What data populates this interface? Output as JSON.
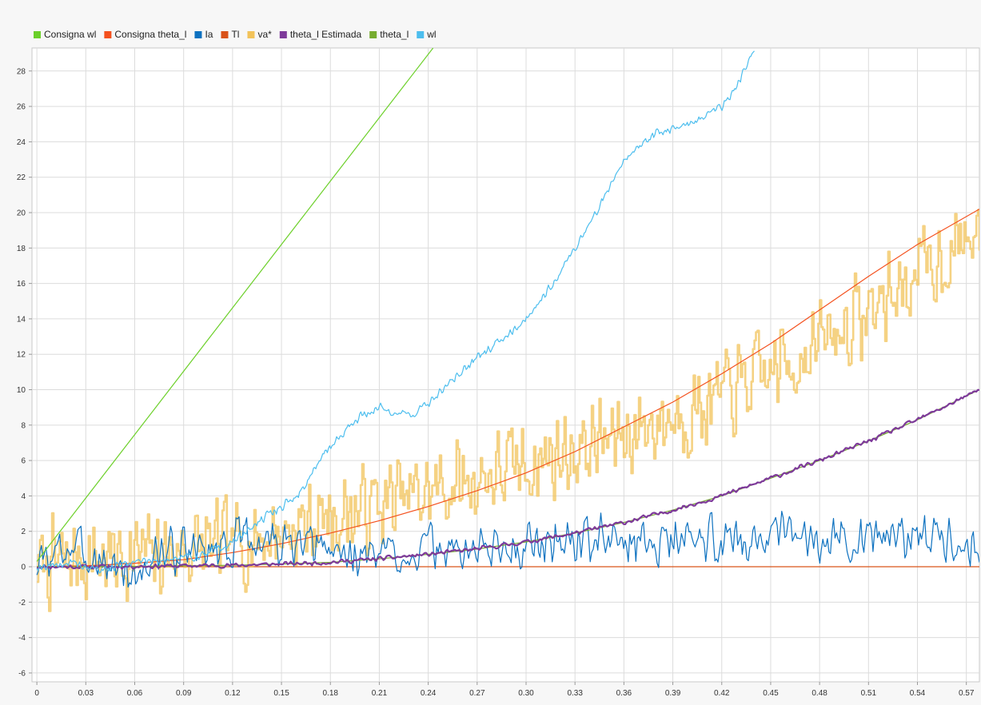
{
  "chart_data": {
    "type": "line",
    "xlabel": "",
    "ylabel": "",
    "xlim": [
      -0.003,
      0.578
    ],
    "ylim": [
      -6.5,
      29.3
    ],
    "grid": true,
    "legend_position": "top-left",
    "x_ticks": [
      "0",
      "0.03",
      "0.06",
      "0.09",
      "0.12",
      "0.15",
      "0.18",
      "0.21",
      "0.24",
      "0.27",
      "0.30",
      "0.33",
      "0.36",
      "0.39",
      "0.42",
      "0.45",
      "0.48",
      "0.51",
      "0.54",
      "0.57"
    ],
    "y_ticks": [
      "28",
      "26",
      "24",
      "22",
      "20",
      "18",
      "16",
      "14",
      "12",
      "10",
      "8",
      "6",
      "4",
      "2",
      "0",
      "-2",
      "-4",
      "-6"
    ],
    "series": [
      {
        "name": "Consigna wl",
        "color": "#6cd02a",
        "x": [
          0,
          0.243
        ],
        "y": [
          0.3,
          29.3
        ]
      },
      {
        "name": "Consigna theta_l",
        "color": "#f4511e",
        "x": [
          0,
          0.03,
          0.06,
          0.09,
          0.12,
          0.15,
          0.18,
          0.21,
          0.24,
          0.27,
          0.3,
          0.33,
          0.36,
          0.39,
          0.42,
          0.45,
          0.48,
          0.51,
          0.54,
          0.578
        ],
        "y": [
          0,
          0.05,
          0.2,
          0.4,
          0.8,
          1.3,
          1.9,
          2.6,
          3.4,
          4.3,
          5.3,
          6.5,
          7.9,
          9.3,
          10.9,
          12.6,
          14.5,
          16.4,
          18.2,
          20.2
        ]
      },
      {
        "name": "Ia",
        "color": "#0e72c0",
        "x": [
          0,
          0.02,
          0.04,
          0.06,
          0.08,
          0.1,
          0.12,
          0.14,
          0.16,
          0.18,
          0.2,
          0.22,
          0.24,
          0.26,
          0.28,
          0.3,
          0.32,
          0.34,
          0.36,
          0.38,
          0.4,
          0.42,
          0.44,
          0.46,
          0.48,
          0.5,
          0.52,
          0.54,
          0.56,
          0.578
        ],
        "y": [
          0,
          1.2,
          0.3,
          -0.5,
          1.0,
          0.8,
          1.4,
          1.5,
          1.0,
          0.9,
          0.6,
          0.8,
          1.0,
          0.9,
          1.1,
          1.3,
          1.5,
          1.6,
          1.4,
          1.5,
          1.5,
          1.6,
          1.7,
          1.6,
          1.7,
          1.6,
          1.7,
          1.8,
          1.8,
          1.2
        ],
        "noise": 1.6,
        "seed": 3
      },
      {
        "name": "Tl",
        "color": "#d95319",
        "x": [
          0,
          0.578
        ],
        "y": [
          0,
          0
        ]
      },
      {
        "name": "va*",
        "color": "#f2c35a",
        "x": [
          0,
          0.03,
          0.06,
          0.09,
          0.12,
          0.15,
          0.18,
          0.21,
          0.24,
          0.27,
          0.3,
          0.33,
          0.36,
          0.39,
          0.42,
          0.45,
          0.48,
          0.51,
          0.54,
          0.578
        ],
        "y": [
          0,
          0.5,
          0.6,
          0.9,
          1.3,
          2.0,
          2.8,
          3.5,
          4.2,
          5.0,
          5.8,
          6.6,
          7.5,
          8.5,
          9.6,
          11.0,
          12.6,
          14.4,
          16.5,
          19.0
        ],
        "noise": 3.0,
        "seed": 7
      },
      {
        "name": "theta_l Estimada",
        "color": "#7e3a9a",
        "x": [
          0,
          0.03,
          0.06,
          0.09,
          0.12,
          0.15,
          0.18,
          0.21,
          0.24,
          0.27,
          0.3,
          0.33,
          0.36,
          0.39,
          0.42,
          0.45,
          0.48,
          0.51,
          0.54,
          0.578
        ],
        "y": [
          0,
          0,
          0.02,
          0.05,
          0.08,
          0.15,
          0.25,
          0.45,
          0.7,
          1.0,
          1.4,
          1.9,
          2.5,
          3.2,
          4.0,
          5.0,
          6.0,
          7.1,
          8.3,
          10.0
        ],
        "noise": 0.15,
        "seed": 11
      },
      {
        "name": "theta_l",
        "color": "#77ac30",
        "x": [
          0,
          0.03,
          0.06,
          0.09,
          0.12,
          0.15,
          0.18,
          0.21,
          0.24,
          0.27,
          0.3,
          0.33,
          0.36,
          0.39,
          0.42,
          0.45,
          0.48,
          0.51,
          0.54,
          0.578
        ],
        "y": [
          0,
          0,
          0.02,
          0.05,
          0.08,
          0.15,
          0.25,
          0.45,
          0.7,
          1.0,
          1.4,
          1.9,
          2.5,
          3.2,
          4.0,
          5.0,
          6.0,
          7.1,
          8.3,
          10.0
        ]
      },
      {
        "name": "wl",
        "color": "#4dbeee",
        "x": [
          0,
          0.02,
          0.04,
          0.06,
          0.08,
          0.1,
          0.12,
          0.14,
          0.16,
          0.17,
          0.18,
          0.19,
          0.2,
          0.21,
          0.22,
          0.23,
          0.24,
          0.26,
          0.28,
          0.3,
          0.32,
          0.34,
          0.36,
          0.38,
          0.4,
          0.42,
          0.43,
          0.44
        ],
        "y": [
          0,
          0.2,
          -0.2,
          0.3,
          0.4,
          0.6,
          1.4,
          2.8,
          4.0,
          5.5,
          6.8,
          7.8,
          8.6,
          9.0,
          8.7,
          8.6,
          9.2,
          11.0,
          12.5,
          14.0,
          16.5,
          19.5,
          23.0,
          24.5,
          25.0,
          26.0,
          27.3,
          29.3
        ],
        "noise": 0.3,
        "seed": 19
      }
    ]
  }
}
